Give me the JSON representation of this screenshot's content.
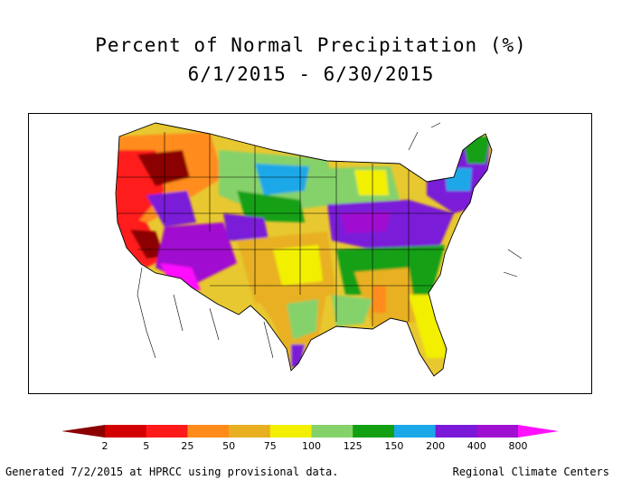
{
  "title": {
    "line1": "Percent of Normal Precipitation (%)",
    "line2": "6/1/2015 - 6/30/2015"
  },
  "legend": {
    "labels": [
      "2",
      "5",
      "25",
      "50",
      "75",
      "100",
      "125",
      "150",
      "200",
      "400",
      "800"
    ],
    "colors": [
      "#8b0000",
      "#d40000",
      "#ff1a1a",
      "#ff8c1a",
      "#e8b020",
      "#f2f000",
      "#86d26a",
      "#12a012",
      "#1aa8e8",
      "#7a1ad8",
      "#a010d0",
      "#ff10ff"
    ]
  },
  "footer": {
    "left": "Generated 7/2/2015 at HPRCC using provisional data.",
    "right": "Regional Climate Centers"
  }
}
